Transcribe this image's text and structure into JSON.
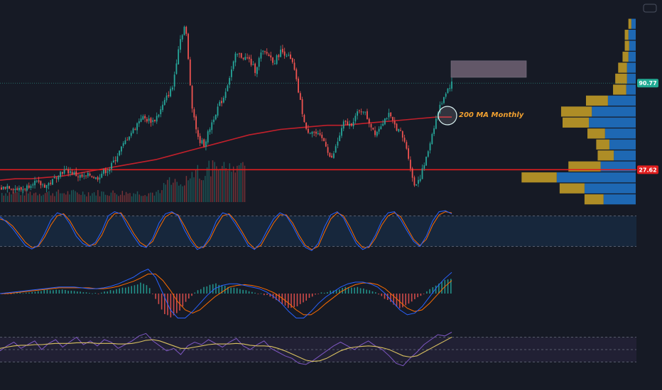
{
  "colors": {
    "background": "#161a25",
    "bull": "#26a69a",
    "bear": "#ef5350",
    "ma200": "#c2202b",
    "support": "#e01e1e",
    "annotation": "#f0a030",
    "tag_top": "#22ab94",
    "tag_low": "#e01e1e",
    "vp_gold": "#c9a227",
    "vp_blue": "#1f6fbf",
    "stoch_k": "#2962ff",
    "stoch_d": "#ff6d00",
    "rsi": "#7e57c2",
    "rsi_ma": "#d8c060",
    "resistance_box": "#a08aa0"
  },
  "price_tags": {
    "top": "90.77",
    "low": "27.62"
  },
  "annotation": {
    "text": "200 MA Monthly"
  },
  "icons": {
    "corner": "camera-icon"
  },
  "chart_data": [
    {
      "type": "candlestick",
      "panel": "price",
      "close_path": [
        14,
        16,
        14,
        13,
        15,
        19,
        17,
        16,
        19,
        25,
        27,
        26,
        23,
        22,
        24,
        21,
        26,
        28,
        36,
        44,
        52,
        58,
        66,
        64,
        63,
        70,
        80,
        88,
        120,
        134,
        76,
        50,
        46,
        60,
        72,
        80,
        96,
        112,
        110,
        108,
        100,
        113,
        112,
        106,
        114,
        112,
        104,
        80,
        56,
        56,
        52,
        48,
        34,
        48,
        62,
        60,
        68,
        72,
        62,
        54,
        62,
        68,
        60,
        54,
        42,
        16,
        22,
        36,
        56,
        72,
        84,
        90.77
      ],
      "horizontal_levels": [
        90.77,
        27.62
      ],
      "resistance_zone": [
        95,
        107
      ],
      "ma_200": [
        20,
        21,
        21,
        22,
        23,
        25,
        27,
        29,
        31,
        33,
        35,
        38,
        41,
        44,
        47,
        50,
        53,
        55,
        57,
        58,
        59,
        60,
        60,
        61,
        62,
        63,
        64,
        65,
        66,
        66
      ],
      "annotation": "200 MA Monthly"
    },
    {
      "type": "bar",
      "panel": "volume_profile",
      "bins": [
        {
          "price": 134,
          "up": 4,
          "down": 6
        },
        {
          "price": 126,
          "up": 5,
          "down": 10
        },
        {
          "price": 118,
          "up": 6,
          "down": 9
        },
        {
          "price": 110,
          "up": 8,
          "down": 10
        },
        {
          "price": 102,
          "up": 12,
          "down": 12
        },
        {
          "price": 94,
          "up": 16,
          "down": 12
        },
        {
          "price": 86,
          "up": 18,
          "down": 13
        },
        {
          "price": 78,
          "up": 30,
          "down": 38
        },
        {
          "price": 70,
          "up": 42,
          "down": 60
        },
        {
          "price": 62,
          "up": 36,
          "down": 64
        },
        {
          "price": 54,
          "up": 24,
          "down": 42
        },
        {
          "price": 46,
          "up": 18,
          "down": 36
        },
        {
          "price": 38,
          "up": 22,
          "down": 30
        },
        {
          "price": 30,
          "up": 44,
          "down": 48
        },
        {
          "price": 22,
          "up": 48,
          "down": 108
        },
        {
          "price": 14,
          "up": 34,
          "down": 70
        },
        {
          "price": 6,
          "up": 26,
          "down": 44
        }
      ]
    },
    {
      "type": "line",
      "panel": "stochastic",
      "levels": [
        80,
        20
      ],
      "k_path": [
        78,
        68,
        55,
        38,
        22,
        15,
        22,
        45,
        72,
        86,
        82,
        64,
        40,
        26,
        20,
        28,
        50,
        80,
        88,
        84,
        60,
        40,
        22,
        18,
        36,
        66,
        84,
        88,
        80,
        52,
        30,
        14,
        20,
        40,
        70,
        86,
        82,
        64,
        44,
        22,
        14,
        28,
        52,
        74,
        86,
        80,
        60,
        36,
        18,
        12,
        26,
        58,
        82,
        88,
        76,
        50,
        26,
        14,
        20,
        42,
        70,
        86,
        88,
        72,
        50,
        30,
        20,
        40,
        70,
        88,
        90,
        84
      ],
      "d_path": [
        74,
        70,
        60,
        44,
        28,
        18,
        20,
        38,
        62,
        80,
        84,
        70,
        48,
        32,
        22,
        24,
        42,
        70,
        84,
        86,
        68,
        46,
        28,
        20,
        30,
        56,
        78,
        86,
        82,
        60,
        36,
        18,
        18,
        34,
        60,
        80,
        84,
        70,
        50,
        28,
        16,
        22,
        44,
        66,
        82,
        82,
        66,
        42,
        22,
        14,
        20,
        48,
        74,
        86,
        80,
        58,
        32,
        18,
        18,
        36,
        62,
        80,
        86,
        78,
        56,
        34,
        22,
        34,
        62,
        82,
        88,
        86
      ]
    },
    {
      "type": "bar",
      "panel": "macd",
      "hist_path": [
        0,
        0,
        1,
        1,
        2,
        3,
        4,
        4,
        5,
        4,
        3,
        2,
        1,
        0,
        2,
        4,
        6,
        8,
        10,
        14,
        8,
        -8,
        -24,
        -30,
        -22,
        -10,
        0,
        6,
        10,
        12,
        10,
        8,
        6,
        4,
        2,
        0,
        -2,
        -6,
        -12,
        -18,
        -16,
        -10,
        -4,
        0,
        2,
        4,
        6,
        8,
        8,
        6,
        4,
        0,
        -6,
        -12,
        -18,
        -14,
        -8,
        -2,
        4,
        10,
        16,
        18
      ],
      "macd_path": [
        0,
        1,
        2,
        3,
        4,
        5,
        6,
        7,
        8,
        8,
        8,
        7,
        6,
        6,
        7,
        9,
        12,
        16,
        20,
        26,
        30,
        20,
        0,
        -20,
        -30,
        -30,
        -22,
        -12,
        -2,
        6,
        10,
        12,
        12,
        10,
        8,
        6,
        2,
        -4,
        -12,
        -22,
        -30,
        -30,
        -22,
        -12,
        -4,
        2,
        8,
        12,
        14,
        14,
        12,
        8,
        0,
        -10,
        -20,
        -26,
        -24,
        -16,
        -4,
        8,
        18,
        26
      ],
      "signal_path": [
        0,
        0,
        1,
        2,
        3,
        4,
        5,
        6,
        7,
        7,
        7,
        7,
        7,
        6,
        6,
        7,
        9,
        12,
        15,
        19,
        24,
        24,
        16,
        4,
        -10,
        -20,
        -24,
        -20,
        -12,
        -4,
        2,
        8,
        10,
        11,
        10,
        8,
        5,
        1,
        -5,
        -12,
        -20,
        -26,
        -26,
        -20,
        -12,
        -5,
        2,
        7,
        11,
        13,
        13,
        11,
        6,
        -2,
        -10,
        -18,
        -22,
        -20,
        -12,
        -2,
        8,
        16
      ]
    },
    {
      "type": "line",
      "panel": "rsi",
      "levels": [
        70,
        50,
        30
      ],
      "rsi_path": [
        48,
        56,
        62,
        52,
        58,
        64,
        50,
        60,
        66,
        54,
        62,
        70,
        58,
        64,
        56,
        66,
        62,
        52,
        58,
        64,
        72,
        76,
        64,
        56,
        48,
        52,
        42,
        56,
        62,
        58,
        66,
        60,
        54,
        62,
        68,
        56,
        50,
        58,
        64,
        52,
        46,
        40,
        36,
        28,
        26,
        32,
        40,
        48,
        56,
        62,
        56,
        50,
        58,
        64,
        56,
        50,
        40,
        28,
        24,
        36,
        46,
        58,
        66,
        74,
        72,
        78
      ],
      "rsi_ma_path": [
        52,
        54,
        56,
        57,
        57,
        58,
        58,
        59,
        60,
        60,
        60,
        61,
        61,
        61,
        60,
        60,
        60,
        59,
        59,
        60,
        62,
        65,
        66,
        64,
        60,
        56,
        52,
        52,
        54,
        56,
        58,
        59,
        59,
        59,
        60,
        59,
        57,
        56,
        56,
        55,
        52,
        48,
        43,
        38,
        33,
        31,
        32,
        36,
        42,
        48,
        52,
        54,
        55,
        56,
        55,
        53,
        50,
        45,
        40,
        38,
        40,
        46,
        52,
        58,
        64,
        70
      ]
    }
  ]
}
